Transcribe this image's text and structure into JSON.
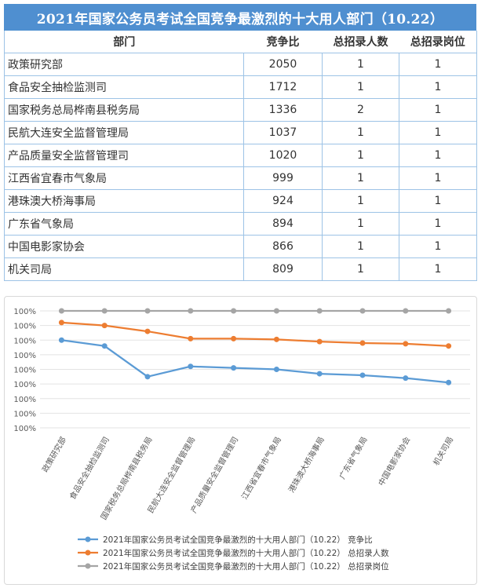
{
  "table": {
    "title": "2021年国家公务员考试全国竞争最激烈的十大用人部门（10.22）",
    "headers": [
      "部门",
      "竞争比",
      "总招录人数",
      "总招录岗位"
    ],
    "rows": [
      {
        "dept": "政策研究部",
        "ratio": "2050",
        "people": "1",
        "posts": "1"
      },
      {
        "dept": "食品安全抽检监测司",
        "ratio": "1712",
        "people": "1",
        "posts": "1"
      },
      {
        "dept": "国家税务总局桦南县税务局",
        "ratio": "1336",
        "people": "2",
        "posts": "1"
      },
      {
        "dept": "民航大连安全监督管理局",
        "ratio": "1037",
        "people": "1",
        "posts": "1"
      },
      {
        "dept": "产品质量安全监督管理司",
        "ratio": "1020",
        "people": "1",
        "posts": "1"
      },
      {
        "dept": "江西省宜春市气象局",
        "ratio": "999",
        "people": "1",
        "posts": "1"
      },
      {
        "dept": "港珠澳大桥海事局",
        "ratio": "924",
        "people": "1",
        "posts": "1"
      },
      {
        "dept": "广东省气象局",
        "ratio": "894",
        "people": "1",
        "posts": "1"
      },
      {
        "dept": "中国电影家协会",
        "ratio": "866",
        "people": "1",
        "posts": "1"
      },
      {
        "dept": "机关司局",
        "ratio": "809",
        "people": "1",
        "posts": "1"
      }
    ]
  },
  "chart_data": {
    "type": "line",
    "categories": [
      "政策研究部",
      "食品安全抽检监测司",
      "国家税务总局桦南县税务局",
      "民航大连安全监督管理局",
      "产品质量安全监督管理司",
      "江西省宜春市气象局",
      "港珠澳大桥海事局",
      "广东省气象局",
      "中国电影家协会",
      "机关司局"
    ],
    "y_tick_labels": [
      "100%",
      "100%",
      "100%",
      "100%",
      "100%",
      "100%",
      "100%",
      "100%",
      "100%"
    ],
    "ylim": [
      0,
      8
    ],
    "grid": true,
    "legend_position": "bottom",
    "series": [
      {
        "name": "2021年国家公务员考试全国竞争最激烈的十大用人部门（10.22） 竞争比",
        "color": "#5b9bd5",
        "values": [
          6.0,
          5.6,
          3.5,
          4.2,
          4.1,
          4.0,
          3.7,
          3.6,
          3.4,
          3.1
        ]
      },
      {
        "name": "2021年国家公务员考试全国竞争最激烈的十大用人部门（10.22） 总招录人数",
        "color": "#ed7d31",
        "values": [
          7.2,
          7.0,
          6.6,
          6.1,
          6.1,
          6.05,
          5.9,
          5.8,
          5.75,
          5.6
        ]
      },
      {
        "name": "2021年国家公务员考试全国竞争最激烈的十大用人部门（10.22） 总招录岗位",
        "color": "#a5a5a5",
        "values": [
          8.0,
          8.0,
          8.0,
          8.0,
          8.0,
          8.0,
          8.0,
          8.0,
          8.0,
          8.0
        ]
      }
    ]
  }
}
